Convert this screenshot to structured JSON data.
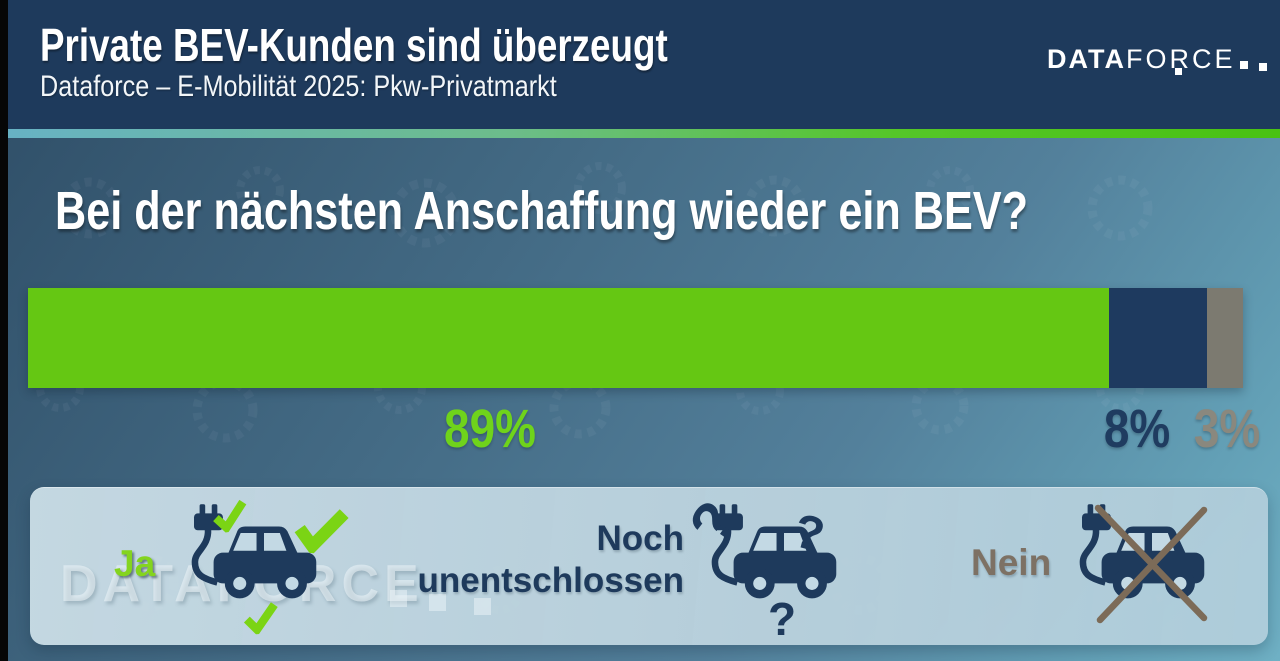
{
  "header": {
    "title": "Private BEV-Kunden sind überzeugt",
    "subtitle": "Dataforce – E-Mobilität 2025: Pkw-Privatmarkt",
    "logo": {
      "bold": "DATA",
      "light": "FORCE"
    }
  },
  "question": "Bei der nächsten Anschaffung wieder ein BEV?",
  "chart_data": {
    "type": "bar",
    "orientation": "horizontal_stacked",
    "title": "Bei der nächsten Anschaffung wieder ein BEV?",
    "categories": [
      "Ja",
      "Noch unentschlossen",
      "Nein"
    ],
    "values": [
      89,
      8,
      3
    ],
    "value_labels": [
      "89%",
      "8%",
      "3%"
    ],
    "colors": [
      "#65c713",
      "#1e3a5f",
      "#7c7a70"
    ],
    "label_colors": [
      "#6fd31b",
      "#1f3c60",
      "#8a887e"
    ],
    "unit": "%",
    "xlim": [
      0,
      100
    ],
    "grid": false,
    "legend_position": "bottom"
  },
  "legend": {
    "question_mark": "?",
    "items": [
      {
        "label": "Ja",
        "icon": "electric-car-check-icon",
        "label_color": "#84d41e"
      },
      {
        "label": "Noch unentschlossen",
        "icon": "electric-car-question-icon",
        "label_color": "#1e3a5c"
      },
      {
        "label": "Nein",
        "icon": "electric-car-crossed-icon",
        "label_color": "#7d7164"
      }
    ]
  },
  "watermark": {
    "bold": "DATA",
    "light": "FORCE"
  }
}
